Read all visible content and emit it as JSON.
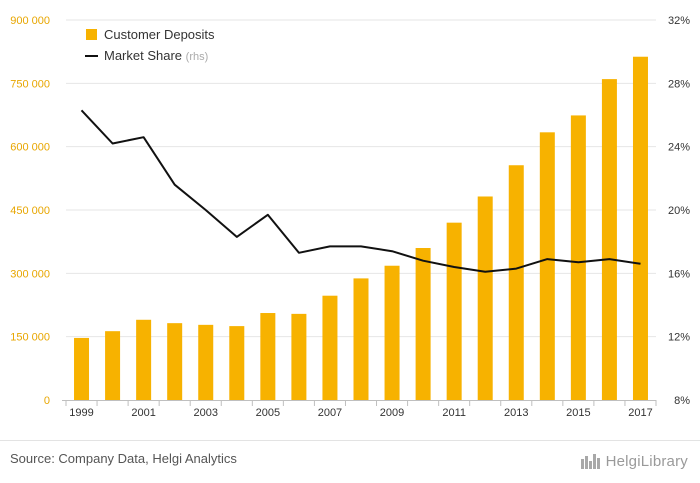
{
  "footer": {
    "source": "Source: Company Data, Helgi Analytics",
    "brand": "HelgiLibrary"
  },
  "colors": {
    "bars": "#f7b200",
    "line": "#111111",
    "left_axis_text": "#e8a600",
    "grid": "#e6e6e6",
    "axis_text": "#333333"
  },
  "chart_data": {
    "type": "bar",
    "categories": [
      "1999",
      "2000",
      "2001",
      "2002",
      "2003",
      "2004",
      "2005",
      "2006",
      "2007",
      "2008",
      "2009",
      "2010",
      "2011",
      "2012",
      "2013",
      "2014",
      "2015",
      "2016",
      "2017"
    ],
    "x_tick_labels": [
      "1999",
      "2001",
      "2003",
      "2005",
      "2007",
      "2009",
      "2011",
      "2013",
      "2015",
      "2017"
    ],
    "series": [
      {
        "name": "Customer Deposits",
        "type": "bar",
        "axis": "left",
        "values": [
          147000,
          163000,
          190000,
          182000,
          178000,
          175000,
          206000,
          204000,
          247000,
          288000,
          318000,
          360000,
          420000,
          482000,
          556000,
          634000,
          674000,
          760000,
          813000
        ]
      },
      {
        "name": "Market Share",
        "suffix": "(rhs)",
        "type": "line",
        "axis": "right",
        "values": [
          26.3,
          24.2,
          24.6,
          21.6,
          20.0,
          18.3,
          19.7,
          17.3,
          17.7,
          17.7,
          17.4,
          16.8,
          16.4,
          16.1,
          16.3,
          16.9,
          16.7,
          16.9,
          16.6
        ]
      }
    ],
    "y_left": {
      "ylim": [
        0,
        900000
      ],
      "ticks": [
        0,
        150000,
        300000,
        450000,
        600000,
        750000,
        900000
      ],
      "tick_labels": [
        "0",
        "150 000",
        "300 000",
        "450 000",
        "600 000",
        "750 000",
        "900 000"
      ]
    },
    "y_right": {
      "ylim": [
        8,
        32
      ],
      "ticks": [
        8,
        12,
        16,
        20,
        24,
        28,
        32
      ],
      "tick_labels": [
        "8%",
        "12%",
        "16%",
        "20%",
        "24%",
        "28%",
        "32%"
      ]
    },
    "grid": true,
    "legend": "top-left"
  }
}
